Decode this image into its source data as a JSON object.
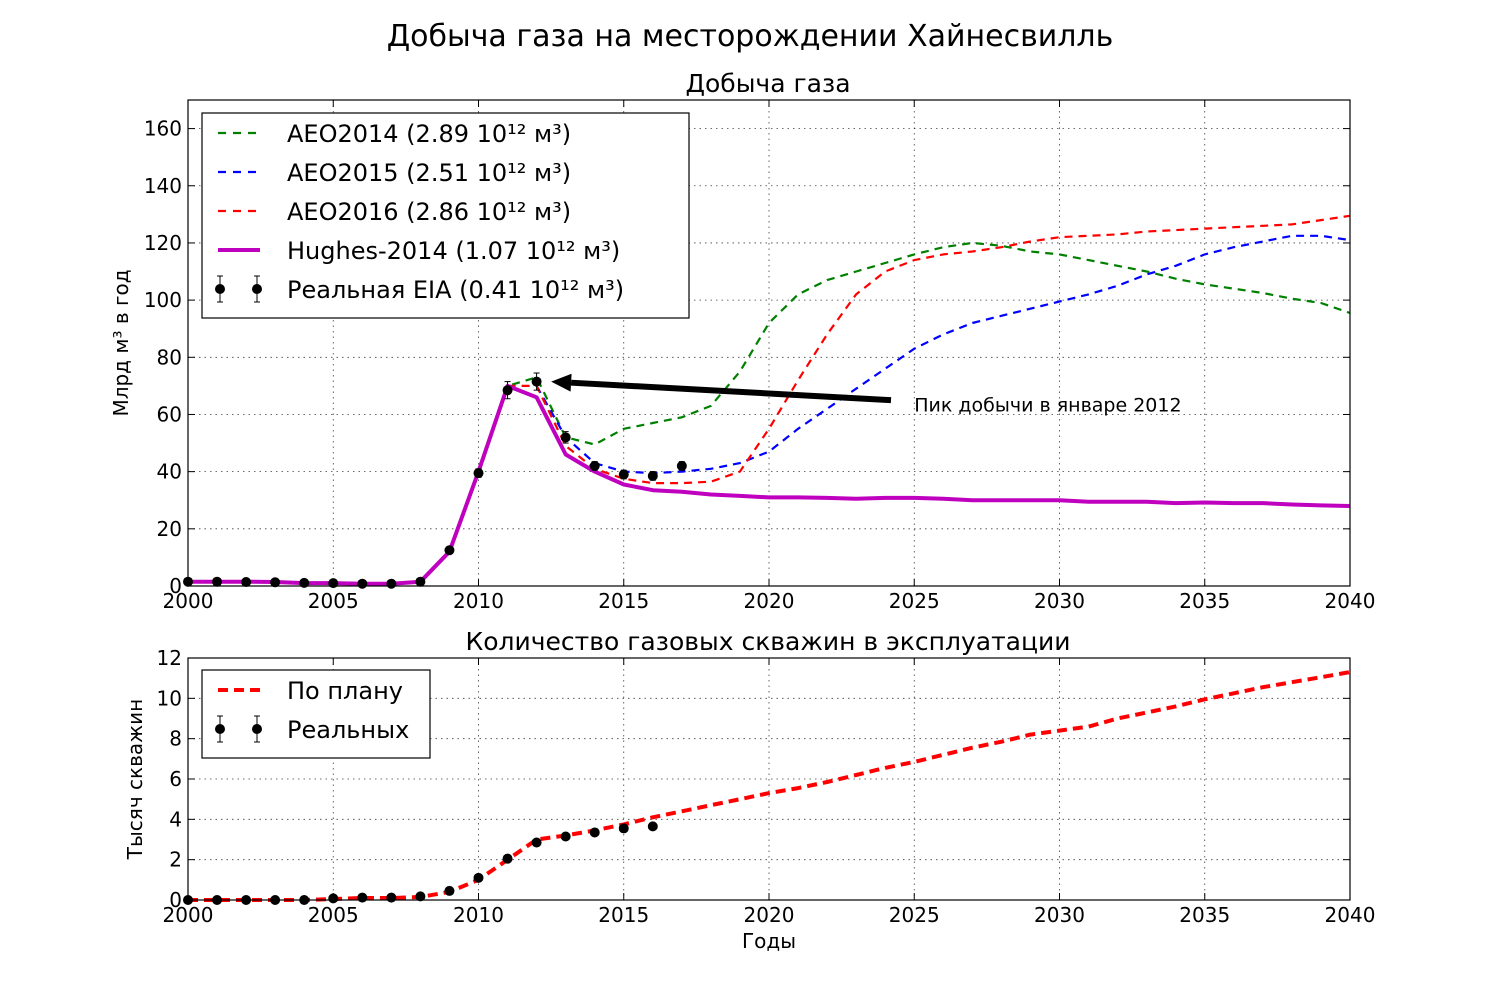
{
  "figure_title": "Добыча газа на месторождении Хайнесвилль",
  "chart_data": [
    {
      "type": "line",
      "title": "Добыча газа",
      "xlabel": "",
      "ylabel": "Млрд м³ в год",
      "xlim": [
        2000,
        2040
      ],
      "ylim": [
        0,
        170
      ],
      "xticks": [
        "2000",
        "2005",
        "2010",
        "2015",
        "2020",
        "2025",
        "2030",
        "2035",
        "2040"
      ],
      "yticks": [
        "0",
        "20",
        "40",
        "60",
        "80",
        "100",
        "120",
        "140",
        "160"
      ],
      "grid": true,
      "legend_position": "top-left",
      "series": [
        {
          "name": "AEO2014 (2.89 10¹² м³)",
          "color": "#008000",
          "style": "dashed",
          "x": [
            2010,
            2011,
            2012,
            2013,
            2014,
            2015,
            2016,
            2017,
            2018,
            2019,
            2020,
            2021,
            2022,
            2023,
            2024,
            2025,
            2026,
            2027,
            2028,
            2029,
            2030,
            2031,
            2032,
            2033,
            2034,
            2035,
            2036,
            2037,
            2038,
            2039,
            2040
          ],
          "y": [
            39,
            70,
            73,
            52,
            49.5,
            55,
            57,
            59,
            63,
            75,
            92,
            102,
            107,
            110,
            113,
            116,
            118.5,
            120,
            119,
            117,
            116,
            114,
            112,
            110,
            107.5,
            105.5,
            104,
            102.5,
            100.5,
            99,
            95.5
          ]
        },
        {
          "name": "AEO2015 (2.51 10¹² м³)",
          "color": "#0000ff",
          "style": "dashed",
          "x": [
            2012,
            2013,
            2014,
            2015,
            2016,
            2017,
            2018,
            2019,
            2020,
            2021,
            2022,
            2023,
            2024,
            2025,
            2026,
            2027,
            2028,
            2029,
            2030,
            2031,
            2032,
            2033,
            2034,
            2035,
            2036,
            2037,
            2038,
            2039,
            2040
          ],
          "y": [
            70,
            52,
            43,
            40,
            39.5,
            40,
            41,
            43,
            47,
            55,
            62,
            69,
            76,
            83,
            88,
            92,
            94.5,
            97,
            99.5,
            102,
            105,
            109,
            112,
            116,
            118.5,
            120.5,
            122.5,
            122.5,
            121
          ]
        },
        {
          "name": "AEO2016 (2.86 10¹² м³)",
          "color": "#ff0000",
          "style": "dashed",
          "x": [
            2011,
            2012,
            2013,
            2014,
            2015,
            2016,
            2017,
            2018,
            2019,
            2020,
            2021,
            2022,
            2023,
            2024,
            2025,
            2026,
            2027,
            2028,
            2029,
            2030,
            2031,
            2032,
            2033,
            2034,
            2035,
            2036,
            2037,
            2038,
            2039,
            2040
          ],
          "y": [
            70,
            70,
            49,
            41,
            37.5,
            36,
            36,
            36.5,
            40,
            55,
            72,
            88,
            102,
            110,
            114,
            116,
            117,
            118.5,
            120.5,
            122,
            122.5,
            123,
            124,
            124.5,
            125,
            125.5,
            126,
            126.5,
            128,
            129.5
          ]
        },
        {
          "name": "Hughes-2014 (1.07 10¹² м³)",
          "color": "#bf00bf",
          "style": "solid",
          "x": [
            2000,
            2001,
            2002,
            2003,
            2004,
            2005,
            2006,
            2007,
            2008,
            2009,
            2010,
            2011,
            2012,
            2013,
            2014,
            2015,
            2016,
            2017,
            2018,
            2019,
            2020,
            2021,
            2022,
            2023,
            2024,
            2025,
            2026,
            2027,
            2028,
            2029,
            2030,
            2031,
            2032,
            2033,
            2034,
            2035,
            2036,
            2037,
            2038,
            2039,
            2040
          ],
          "y": [
            1.5,
            1.5,
            1.5,
            1.4,
            1,
            1,
            0.8,
            0.8,
            1.5,
            12,
            40,
            70,
            66,
            46,
            40,
            35.5,
            33.5,
            33,
            32,
            31.5,
            31,
            31,
            30.8,
            30.5,
            30.8,
            30.8,
            30.5,
            30,
            30,
            30,
            30,
            29.5,
            29.5,
            29.5,
            29,
            29.2,
            29,
            29,
            28.5,
            28.2,
            28
          ]
        },
        {
          "name": "Реальная EIA (0.41 10¹² м³)",
          "color": "#000000",
          "style": "errorbar",
          "x": [
            2000,
            2001,
            2002,
            2003,
            2004,
            2005,
            2006,
            2007,
            2008,
            2009,
            2010,
            2011,
            2012,
            2013,
            2014,
            2015,
            2016,
            2017
          ],
          "y": [
            1.5,
            1.5,
            1.4,
            1.3,
            1.1,
            1,
            0.8,
            0.8,
            1.5,
            12.5,
            39.5,
            68.5,
            71.5,
            52,
            42,
            39,
            38.5,
            42
          ],
          "err": [
            0.5,
            0.5,
            0.5,
            0.5,
            0.5,
            0.5,
            0.5,
            0.5,
            0.5,
            1,
            1.5,
            3,
            3,
            2,
            1.5,
            1.5,
            1.5,
            1.5
          ]
        }
      ],
      "annotations": [
        {
          "text": "Пик добычи в январе 2012",
          "x": 2025,
          "y": 61,
          "arrow_from": [
            2024.2,
            65
          ],
          "arrow_to": [
            2012.5,
            71.5
          ]
        }
      ]
    },
    {
      "type": "line",
      "title": "Количество газовых скважин в эксплуатации",
      "xlabel": "Годы",
      "ylabel": "Тысяч скважин",
      "xlim": [
        2000,
        2040
      ],
      "ylim": [
        0,
        12
      ],
      "xticks": [
        "2000",
        "2005",
        "2010",
        "2015",
        "2020",
        "2025",
        "2030",
        "2035",
        "2040"
      ],
      "yticks": [
        "0",
        "2",
        "4",
        "6",
        "8",
        "10",
        "12"
      ],
      "grid": true,
      "legend_position": "top-left",
      "series": [
        {
          "name": "По плану",
          "color": "#ff0000",
          "style": "dashed",
          "x": [
            2000,
            2001,
            2002,
            2003,
            2004,
            2005,
            2006,
            2007,
            2008,
            2009,
            2010,
            2011,
            2012,
            2013,
            2014,
            2015,
            2016,
            2017,
            2018,
            2019,
            2020,
            2021,
            2022,
            2023,
            2024,
            2025,
            2026,
            2027,
            2028,
            2029,
            2030,
            2031,
            2032,
            2033,
            2034,
            2035,
            2036,
            2037,
            2038,
            2039,
            2040
          ],
          "y": [
            0,
            0,
            0,
            0,
            0,
            0.05,
            0.1,
            0.1,
            0.15,
            0.4,
            1,
            2,
            3,
            3.2,
            3.45,
            3.75,
            4.1,
            4.4,
            4.7,
            5,
            5.3,
            5.55,
            5.85,
            6.2,
            6.55,
            6.85,
            7.2,
            7.55,
            7.85,
            8.2,
            8.4,
            8.6,
            9,
            9.3,
            9.6,
            9.95,
            10.25,
            10.55,
            10.8,
            11.05,
            11.3
          ]
        },
        {
          "name": "Реальных",
          "color": "#000000",
          "style": "errorbar",
          "x": [
            2000,
            2001,
            2002,
            2003,
            2004,
            2005,
            2006,
            2007,
            2008,
            2009,
            2010,
            2011,
            2012,
            2013,
            2014,
            2015,
            2016
          ],
          "y": [
            0,
            0,
            0,
            0,
            0,
            0.08,
            0.12,
            0.12,
            0.18,
            0.45,
            1.1,
            2.05,
            2.85,
            3.15,
            3.35,
            3.55,
            3.65
          ]
        }
      ]
    }
  ]
}
